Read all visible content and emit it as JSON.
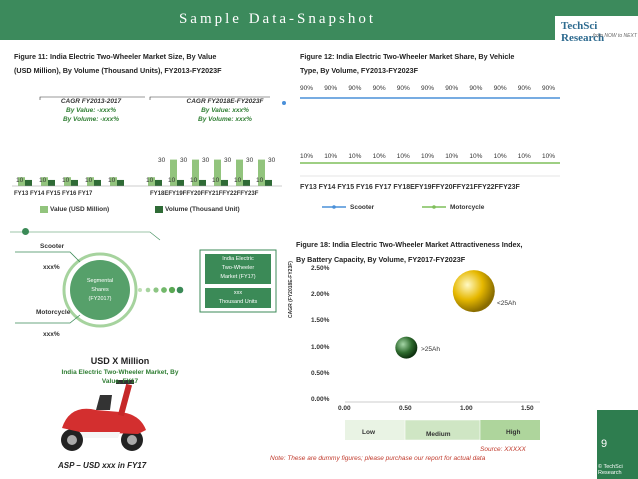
{
  "header": {
    "title": "Sample Data-Snapshot"
  },
  "logo": {
    "name": "TechSci Research",
    "tagline": "from NOW to NEXT"
  },
  "fig11": {
    "title": "Figure 11: India Electric Two-Wheeler  Market Size, By Value",
    "subtitle": "(USD Million), By Volume (Thousand Units), FY2013-FY2023F",
    "cagr1": {
      "heading": "CAGR FY2013-2017",
      "line1": "By Value: -xxx%",
      "line2": "By Volume: -xxx%"
    },
    "cagr2": {
      "heading": "CAGR FY2018E-FY2023F",
      "line1": "By Value: xxx%",
      "line2": "By Volume: xxx%"
    },
    "tick_text": "FY13  FY14  FY15  FY16  FY17",
    "tick_text2": "FY18EFY19FFY20FFY21FFY22FFY23F",
    "label_tops": [
      "30",
      "30",
      "30",
      "30",
      "30",
      "30"
    ],
    "legend": [
      "Value (USD Million)",
      "Volume (Thousand Unit)"
    ]
  },
  "fig12": {
    "title": "Figure 12: India Electric Two-Wheeler Market Share, By Vehicle",
    "subtitle": "Type, By Volume, FY2013-FY2023F",
    "top_values": [
      "90%",
      "90%",
      "90%",
      "90%",
      "90%",
      "90%",
      "90%",
      "90%",
      "90%",
      "90%",
      "90%"
    ],
    "bottom_values": [
      "10%",
      "10%",
      "10%",
      "10%",
      "10%",
      "10%",
      "10%",
      "10%",
      "10%",
      "10%",
      "10%"
    ],
    "tick_text": "FY13  FY14  FY15  FY16  FY17 FY18EFY19FFY20FFY21FFY22FFY23F",
    "legend": [
      "Scooter",
      "Motorcycle"
    ]
  },
  "seg": {
    "scooter": "Scooter",
    "scooter_val": "xxx%",
    "motorcycle": "Motorcycle",
    "motorcycle_val": "xxx%",
    "center_l1": "Segmental",
    "center_l2": "Shares",
    "center_l3": "(FY2017)",
    "box_l1": "India Electric",
    "box_l2": "Two-Wheeler",
    "box_l3": "Market (FY17)",
    "box_l4": "xxx",
    "box_l5": "Thousand Units",
    "usd": "USD X Million",
    "market_l1": "India Electric Two-Wheeler Market, By",
    "market_l2": "Value, FY17",
    "asp": "ASP – USD xxx in FY17"
  },
  "fig18": {
    "title": "Figure 18: India Electric Two-Wheeler Market Attractiveness Index,",
    "subtitle": "By Battery Capacity, By Volume, FY2017-FY2023F",
    "ylabel": "CAGR (FY2018E-FY23F)",
    "yticks": [
      "2.50%",
      "2.00%",
      "1.50%",
      "1.00%",
      "0.50%",
      "0.00%"
    ],
    "xticks": [
      "0.00",
      "0.50",
      "1.00",
      "1.50"
    ],
    "bubble1": "<25Ah",
    "bubble2": ">25Ah",
    "bands": [
      "Low",
      "Medium",
      "High"
    ]
  },
  "chart_data": [
    {
      "type": "bar",
      "categories": [
        "FY13",
        "FY14",
        "FY15",
        "FY16",
        "FY17",
        "FY18E",
        "FY19F",
        "FY20F",
        "FY21F",
        "FY22F",
        "FY23F"
      ],
      "series": [
        {
          "name": "Value (USD Million)",
          "values": [
            10,
            10,
            10,
            10,
            10,
            10,
            30,
            30,
            30,
            30,
            30
          ]
        },
        {
          "name": "Volume (Thousand Unit)",
          "values": [
            10,
            10,
            10,
            10,
            10,
            10,
            10,
            10,
            10,
            10,
            10
          ]
        }
      ]
    },
    {
      "type": "line",
      "categories": [
        "FY13",
        "FY14",
        "FY15",
        "FY16",
        "FY17",
        "FY18E",
        "FY19F",
        "FY20F",
        "FY21F",
        "FY22F",
        "FY23F"
      ],
      "series": [
        {
          "name": "Scooter",
          "values": [
            90,
            90,
            90,
            90,
            90,
            90,
            90,
            90,
            90,
            90,
            90
          ]
        },
        {
          "name": "Motorcycle",
          "values": [
            10,
            10,
            10,
            10,
            10,
            10,
            10,
            10,
            10,
            10,
            10
          ]
        }
      ]
    },
    {
      "type": "scatter",
      "points": [
        {
          "label": "<25Ah",
          "x": 1.05,
          "y": 0.021
        },
        {
          "label": ">25Ah",
          "x": 0.5,
          "y": 0.0103
        }
      ],
      "xlim": [
        0,
        1.5
      ],
      "ylim": [
        0,
        0.025
      ]
    }
  ],
  "footer": {
    "source": "Source: XXXXX",
    "note": "Note: These are dummy figures; please purchase our report for actual data",
    "page": "9",
    "copyright": "© TechSci Research"
  },
  "colors": {
    "banner": "#3c8a5c",
    "bar_dark": "#2f6b36",
    "bar_light": "#92c47d",
    "line_blue": "#4a90d9",
    "line_green": "#7fbf5a"
  }
}
